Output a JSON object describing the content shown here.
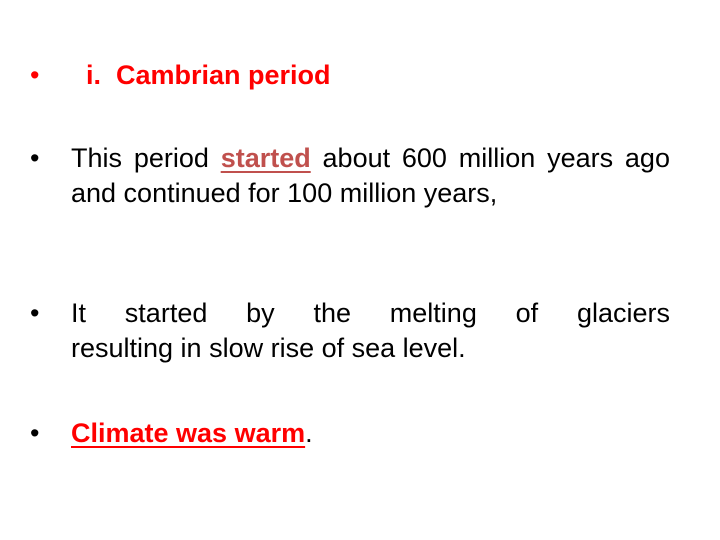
{
  "slide": {
    "heading": {
      "bullet": "•",
      "text": "i.  Cambrian period"
    },
    "bullet2": {
      "bullet": "•",
      "pre": "This period",
      "highlight": "started",
      "post": "about 600 million years ago and continued for 100 million years,"
    },
    "bullet3": {
      "bullet": "•",
      "line1": "It started by the melting of glaciers",
      "line2": "resulting in slow rise of sea level."
    },
    "bullet4": {
      "bullet": "•",
      "highlight": "Climate was warm",
      "post": "."
    },
    "colors": {
      "accent_red": "#ff0000",
      "underline_red": "#c0504d",
      "text": "#000000"
    }
  }
}
